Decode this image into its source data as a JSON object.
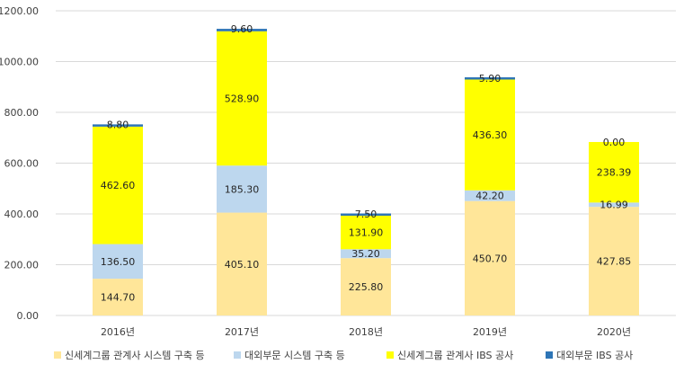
{
  "chart_data": {
    "type": "bar",
    "stacked": true,
    "title": "",
    "xlabel": "",
    "ylabel": "",
    "ylim": [
      0,
      1200
    ],
    "yticks": [
      "0.00",
      "200.00",
      "400.00",
      "600.00",
      "800.00",
      "1000.00",
      "1200.00"
    ],
    "grid": true,
    "legend_position": "bottom",
    "categories": [
      "2016년",
      "2017년",
      "2018년",
      "2019년",
      "2020년"
    ],
    "series": [
      {
        "name": "신세계그룹 관계사 시스템 구축 등",
        "color": "#FFE699",
        "values": [
          144.7,
          405.1,
          225.8,
          450.7,
          427.85
        ],
        "labels": [
          "144.70",
          "405.10",
          "225.80",
          "450.70",
          "427.85"
        ]
      },
      {
        "name": "대외부문 시스템 구축 등",
        "color": "#BDD7EE",
        "values": [
          136.5,
          185.3,
          35.2,
          42.2,
          16.99
        ],
        "labels": [
          "136.50",
          "185.30",
          "35.20",
          "42.20",
          "16.99"
        ]
      },
      {
        "name": "신세계그룹 관계사 IBS 공사",
        "color": "#FFFF00",
        "values": [
          462.6,
          528.9,
          131.9,
          436.3,
          238.39
        ],
        "labels": [
          "462.60",
          "528.90",
          "131.90",
          "436.30",
          "238.39"
        ]
      },
      {
        "name": "대외부문 IBS 공사",
        "color": "#2E75B6",
        "values": [
          8.8,
          9.6,
          7.5,
          5.9,
          0.0
        ],
        "labels": [
          "8.80",
          "9.60",
          "7.50",
          "5.90",
          "0.00"
        ]
      }
    ]
  }
}
